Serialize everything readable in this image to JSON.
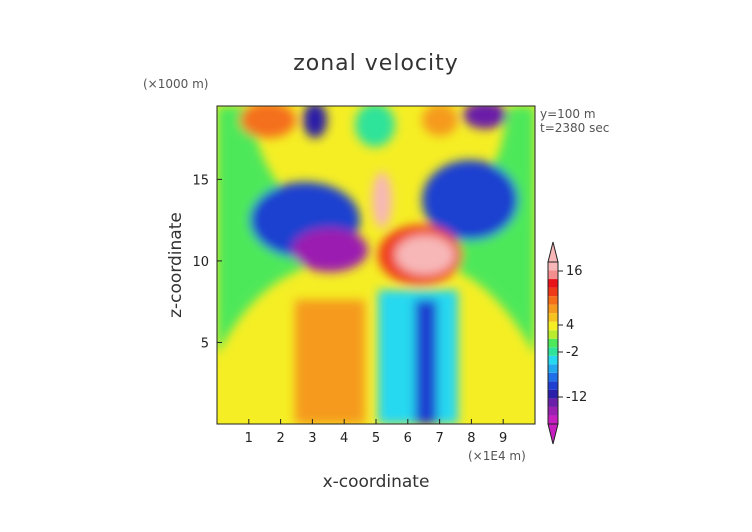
{
  "chart_data": {
    "type": "heatmap",
    "title": "zonal velocity",
    "xlabel": "x-coordinate",
    "ylabel": "z-coordinate",
    "x_scale_note": "(×1E4 m)",
    "y_scale_note": "(×1000 m)",
    "info_lines": [
      "y=100 m",
      "t=2380 sec"
    ],
    "xlim": [
      0,
      10
    ],
    "ylim": [
      0,
      19.5
    ],
    "x_ticks": [
      1,
      2,
      3,
      4,
      5,
      6,
      7,
      8,
      9
    ],
    "y_ticks": [
      5,
      10,
      15
    ],
    "colorbar": {
      "tick_labels": [
        "16",
        "4",
        "-2",
        "-12"
      ],
      "tick_values": [
        16,
        4,
        -2,
        -12
      ],
      "levels": [
        -18,
        -16,
        -14,
        -12,
        -10,
        -8,
        -6,
        -4,
        -2,
        0,
        2,
        4,
        6,
        8,
        10,
        12,
        14,
        16,
        18
      ],
      "colors": [
        "#c71fbf",
        "#9b1fb0",
        "#6a1fa8",
        "#2a1fa8",
        "#1f3fd0",
        "#1f6fe8",
        "#23a7ef",
        "#26d8f0",
        "#2fe39a",
        "#4ee85a",
        "#b8ec2c",
        "#f5ee25",
        "#f5c21f",
        "#f59a1f",
        "#f56f1a",
        "#ef3a1a",
        "#e8141a",
        "#f58f8f",
        "#f7b7b7"
      ]
    },
    "grid": false
  }
}
